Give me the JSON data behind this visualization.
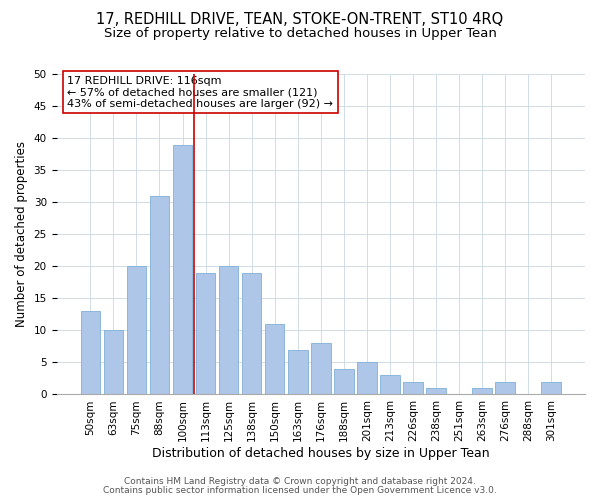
{
  "title": "17, REDHILL DRIVE, TEAN, STOKE-ON-TRENT, ST10 4RQ",
  "subtitle": "Size of property relative to detached houses in Upper Tean",
  "xlabel": "Distribution of detached houses by size in Upper Tean",
  "ylabel": "Number of detached properties",
  "bar_labels": [
    "50sqm",
    "63sqm",
    "75sqm",
    "88sqm",
    "100sqm",
    "113sqm",
    "125sqm",
    "138sqm",
    "150sqm",
    "163sqm",
    "176sqm",
    "188sqm",
    "201sqm",
    "213sqm",
    "226sqm",
    "238sqm",
    "251sqm",
    "263sqm",
    "276sqm",
    "288sqm",
    "301sqm"
  ],
  "bar_values": [
    13,
    10,
    20,
    31,
    39,
    19,
    20,
    19,
    11,
    7,
    8,
    4,
    5,
    3,
    2,
    1,
    0,
    1,
    2,
    0,
    2
  ],
  "bar_color": "#aec6e8",
  "bar_edge_color": "#7fb0d8",
  "vline_x": 4.5,
  "annotation_text_line1": "17 REDHILL DRIVE: 116sqm",
  "annotation_text_line2": "← 57% of detached houses are smaller (121)",
  "annotation_text_line3": "43% of semi-detached houses are larger (92) →",
  "vline_color": "#cc0000",
  "annotation_box_color": "#ffffff",
  "annotation_box_edge": "#cc0000",
  "ylim": [
    0,
    50
  ],
  "footer1": "Contains HM Land Registry data © Crown copyright and database right 2024.",
  "footer2": "Contains public sector information licensed under the Open Government Licence v3.0.",
  "title_fontsize": 10.5,
  "subtitle_fontsize": 9.5,
  "xlabel_fontsize": 9,
  "ylabel_fontsize": 8.5,
  "tick_fontsize": 7.5,
  "footer_fontsize": 6.5,
  "annotation_fontsize": 8
}
